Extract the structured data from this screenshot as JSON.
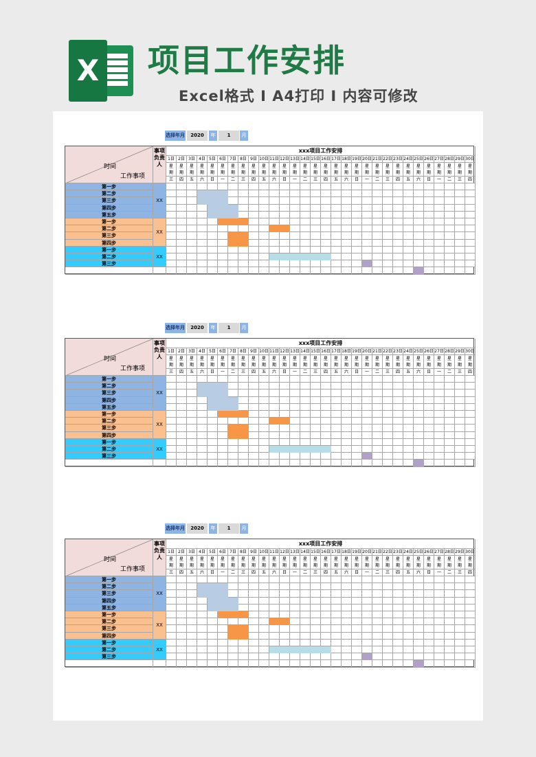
{
  "header": {
    "logo_letter": "X",
    "title": "项目工作安排",
    "subtitle": "Excel格式 I A4打印 I 内容可修改"
  },
  "selector": {
    "label": "选择年月",
    "year": "2020",
    "year_unit": "年",
    "month": "1",
    "month_unit": "月"
  },
  "table": {
    "title": "xxx项目工作安排",
    "corner_time": "时间",
    "corner_item": "工作事项",
    "owner_header": "事项负责人",
    "days": [
      "1日",
      "2日",
      "3日",
      "4日",
      "5日",
      "6日",
      "7日",
      "8日",
      "9日",
      "10日",
      "11日",
      "12日",
      "13日",
      "14日",
      "15日",
      "16日",
      "17日",
      "18日",
      "19日",
      "20日",
      "21日",
      "22日",
      "23日",
      "24日",
      "25日",
      "26日",
      "27日",
      "28日",
      "29日",
      "30日"
    ],
    "week_label": "星期",
    "weekdays": [
      "三",
      "四",
      "五",
      "六",
      "日",
      "一",
      "二",
      "三",
      "四",
      "五",
      "六",
      "日",
      "一",
      "二",
      "三",
      "四",
      "五",
      "六",
      "日",
      "一",
      "二",
      "三",
      "四",
      "五",
      "六",
      "日",
      "一",
      "二",
      "三",
      "四"
    ],
    "groups": [
      {
        "owner": "XX",
        "color": "#8db4e2",
        "steps": [
          "第一步",
          "第二步",
          "第三步",
          "第四步",
          "第五步"
        ]
      },
      {
        "owner": "XX",
        "color": "#fac090",
        "steps": [
          "第一步",
          "第二步",
          "第三步",
          "第四步"
        ]
      },
      {
        "owner": "XX",
        "color": "#33ccff",
        "steps": [
          "第一步",
          "第二步",
          "第三步"
        ]
      }
    ]
  },
  "colors": {
    "blue_bar": "#b8cce4",
    "orange_bar": "#f79646",
    "teal_bar": "#b7dde8",
    "purple_bar": "#b1a0c7"
  }
}
